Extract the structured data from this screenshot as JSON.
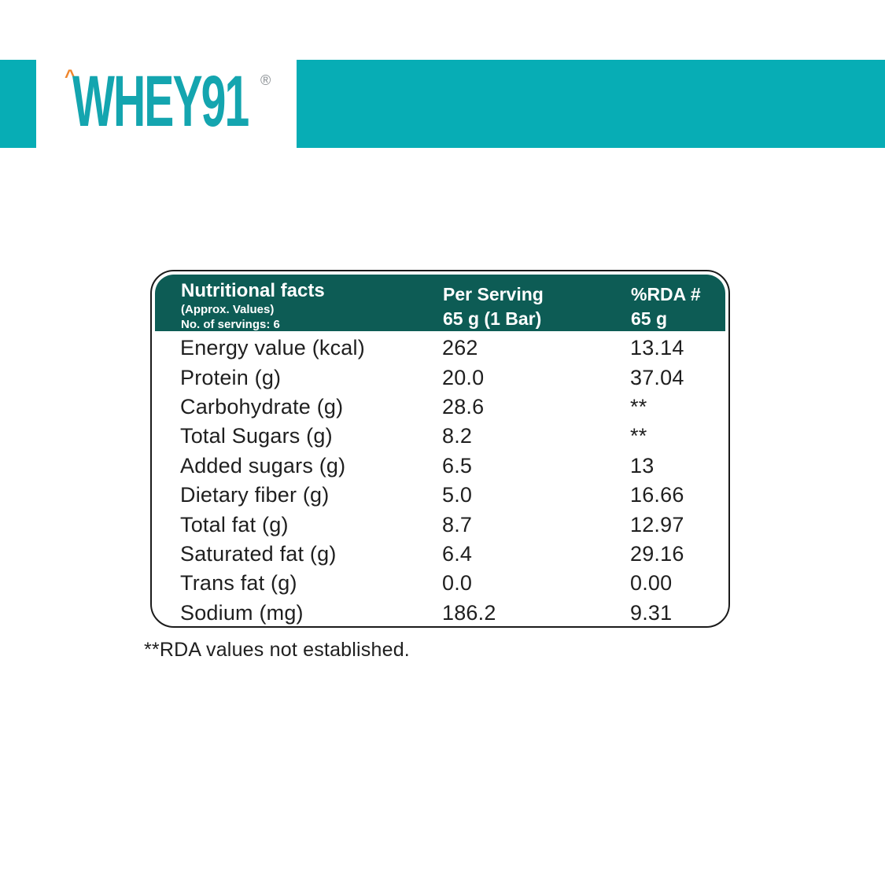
{
  "brand": {
    "logo_text": "WHEY91",
    "caret": "^",
    "registered": "®"
  },
  "colors": {
    "teal_band": "#07adb5",
    "logo_teal": "#14a5af",
    "header_green": "#0d5c55",
    "caret_orange": "#f0862c",
    "body_text": "#1f1f1f"
  },
  "table": {
    "header": {
      "title": "Nutritional facts",
      "subtitle": "(Approx. Values)",
      "servings": "No. of servings: 6",
      "col2_line1": "Per Serving",
      "col2_line2": "65 g (1 Bar)",
      "col3_line1": "%RDA #",
      "col3_line2": "65 g"
    },
    "rows": [
      {
        "label": "Energy value (kcal)",
        "per_serving": "262",
        "rda": "13.14"
      },
      {
        "label": "Protein (g)",
        "per_serving": "20.0",
        "rda": "37.04"
      },
      {
        "label": "Carbohydrate (g)",
        "per_serving": "28.6",
        "rda": "**"
      },
      {
        "label": "Total Sugars (g)",
        "per_serving": "8.2",
        "rda": "**"
      },
      {
        "label": "Added sugars (g)",
        "per_serving": "6.5",
        "rda": "13"
      },
      {
        "label": "Dietary fiber (g)",
        "per_serving": "5.0",
        "rda": "16.66"
      },
      {
        "label": "Total fat (g)",
        "per_serving": "8.7",
        "rda": "12.97"
      },
      {
        "label": "Saturated fat (g)",
        "per_serving": "6.4",
        "rda": "29.16"
      },
      {
        "label": "Trans fat (g)",
        "per_serving": "0.0",
        "rda": "0.00"
      },
      {
        "label": "Sodium (mg)",
        "per_serving": "186.2",
        "rda": "9.31"
      }
    ]
  },
  "footnote": "**RDA values not established."
}
